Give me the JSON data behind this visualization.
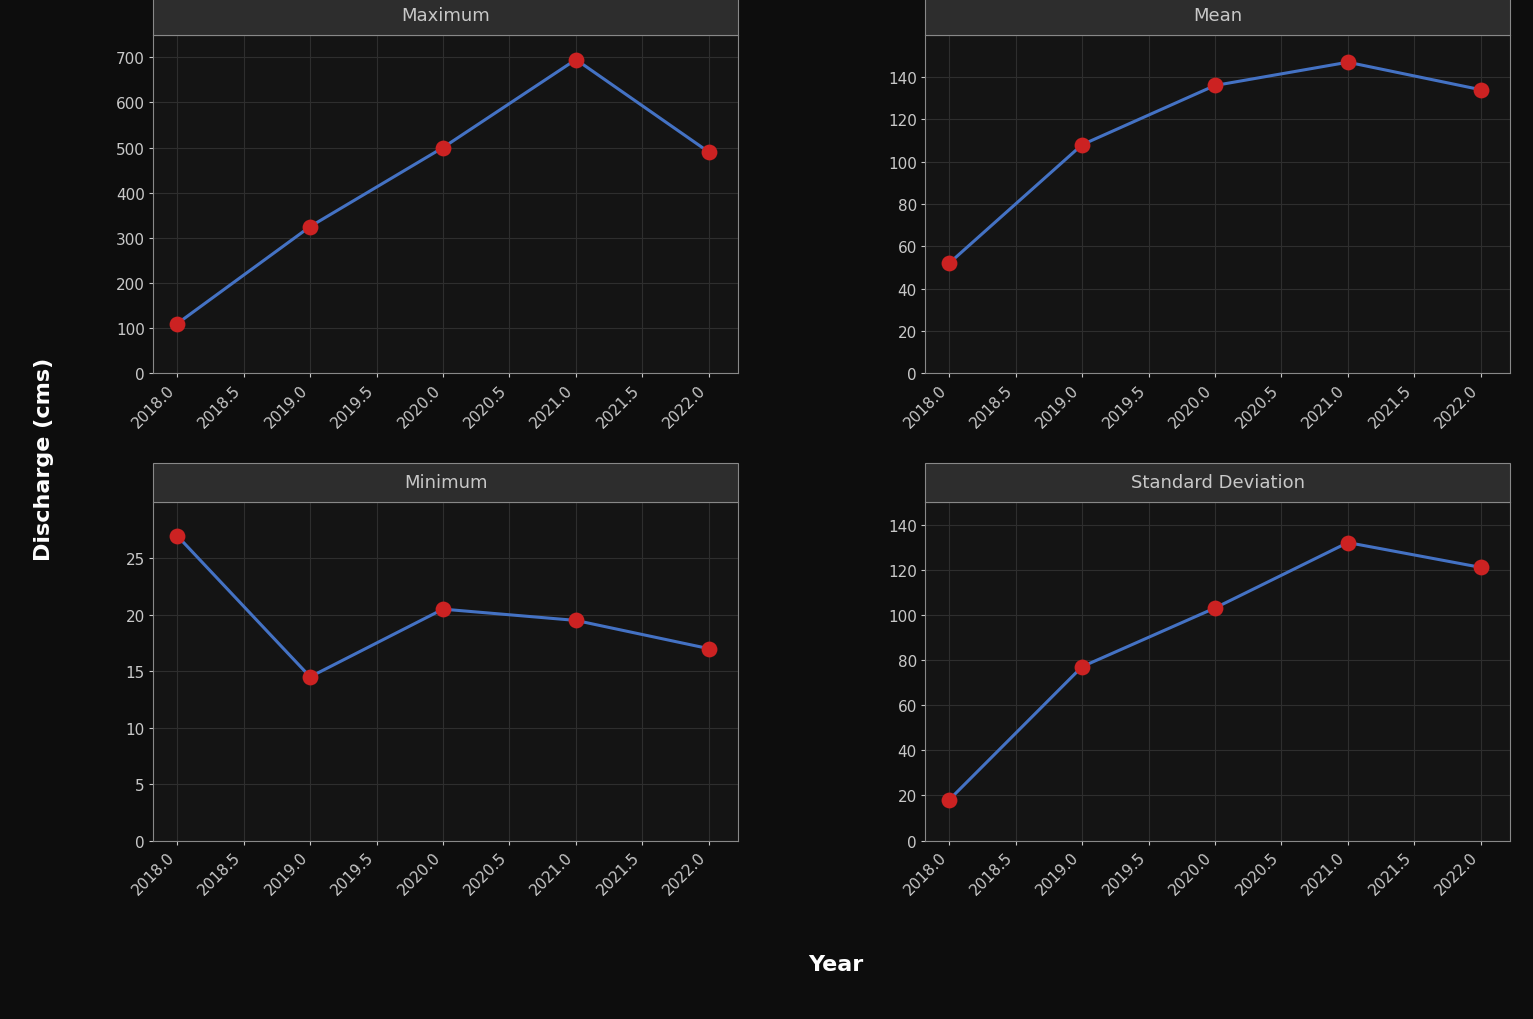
{
  "years": [
    2018,
    2019,
    2020,
    2021,
    2022
  ],
  "maximum": [
    110,
    325,
    500,
    695,
    490
  ],
  "mean": [
    52,
    108,
    136,
    147,
    134
  ],
  "minimum": [
    27,
    14.5,
    20.5,
    19.5,
    17
  ],
  "std_dev": [
    18,
    77,
    103,
    132,
    121
  ],
  "line_color": "#4472C4",
  "marker_color": "#CC2222",
  "bg_outer": "#0d0d0d",
  "bg_inner": "#141414",
  "grid_color": "#2e2e2e",
  "title_bg": "#2d2d2d",
  "text_color": "#c8c8c8",
  "spine_color": "#888888",
  "titles": [
    "Maximum",
    "Mean",
    "Minimum",
    "Standard Deviation"
  ],
  "xlabel": "Year",
  "ylabel": "Discharge (cms)",
  "max_ylim": [
    0,
    750
  ],
  "mean_ylim": [
    0,
    160
  ],
  "min_ylim": [
    0,
    30
  ],
  "std_ylim": [
    0,
    150
  ],
  "max_yticks": [
    0,
    100,
    200,
    300,
    400,
    500,
    600,
    700
  ],
  "mean_yticks": [
    0,
    20,
    40,
    60,
    80,
    100,
    120,
    140
  ],
  "min_yticks": [
    0,
    5,
    10,
    15,
    20,
    25
  ],
  "std_yticks": [
    0,
    20,
    40,
    60,
    80,
    100,
    120,
    140
  ],
  "xticks": [
    2018.0,
    2018.5,
    2019.0,
    2019.5,
    2020.0,
    2020.5,
    2021.0,
    2021.5,
    2022.0
  ]
}
